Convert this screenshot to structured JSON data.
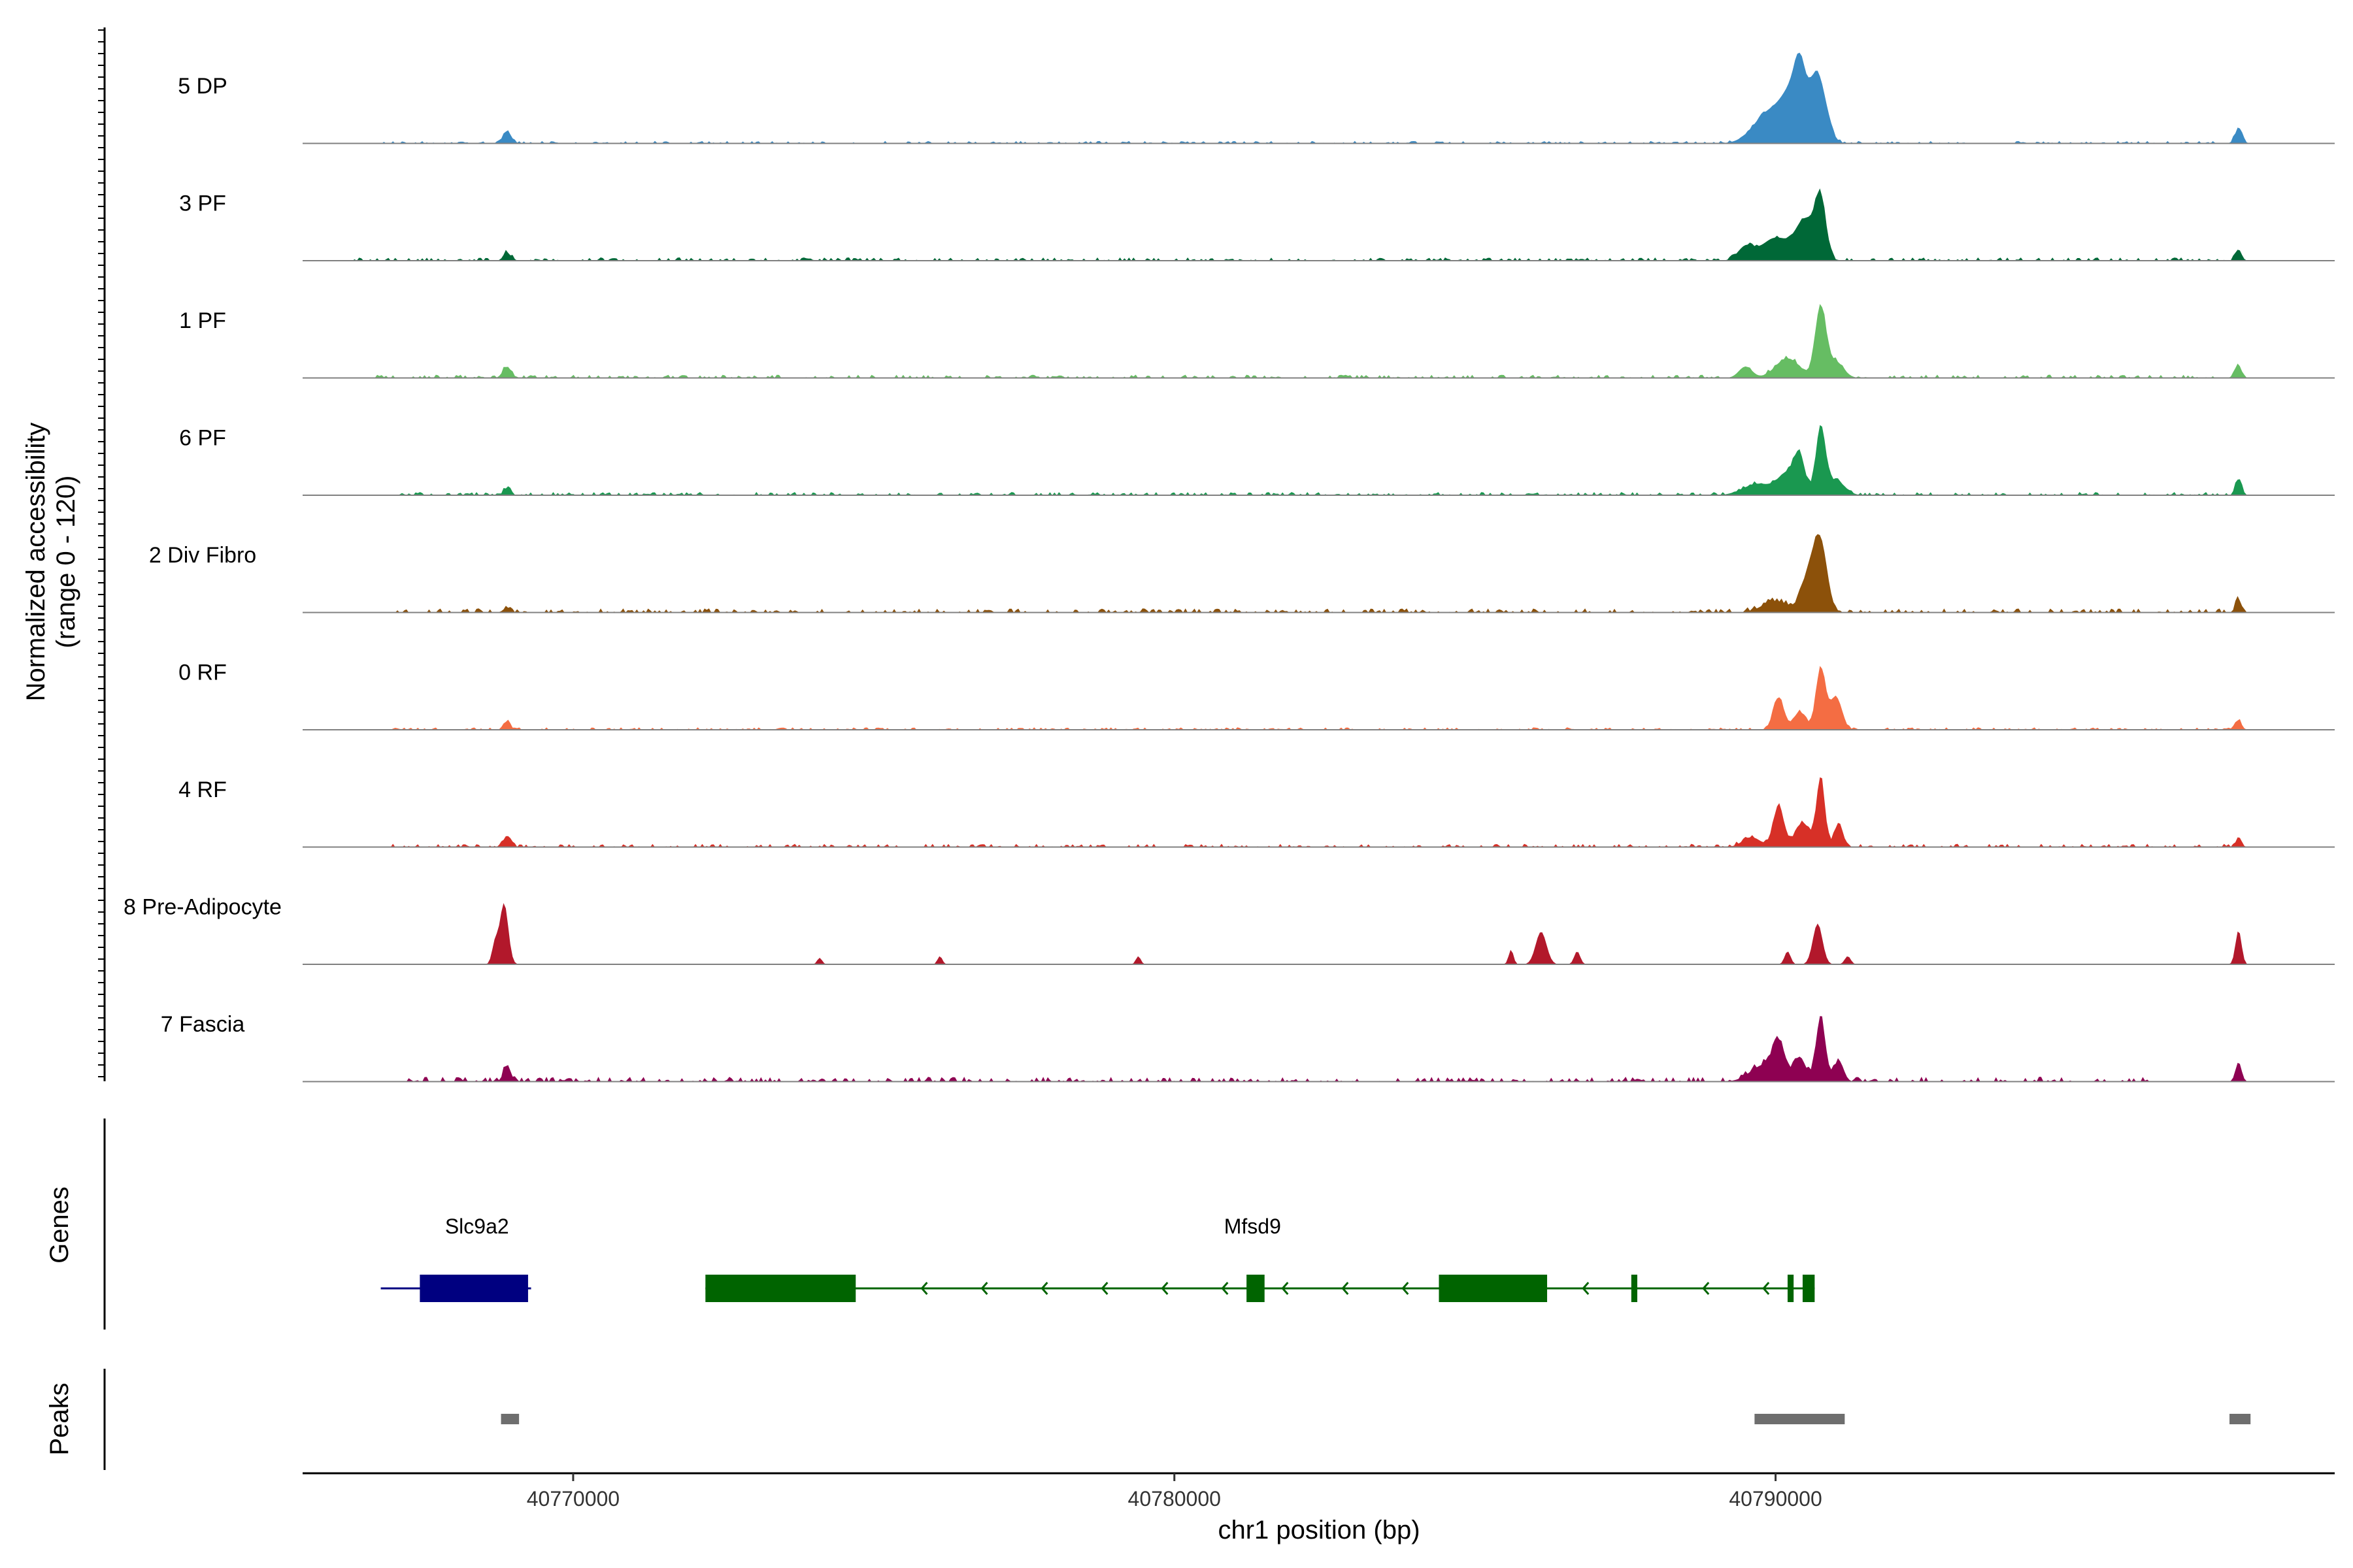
{
  "chart_data": {
    "type": "area",
    "title": "",
    "ylabel_line1": "Normalized accessibility",
    "ylabel_line2": "(range 0 - 120)",
    "xlabel": "chr1 position (bp)",
    "ylim": [
      0,
      120
    ],
    "xlim": [
      40765500,
      40799300
    ],
    "x_ticks": [
      {
        "value": 40770000,
        "label": "40770000"
      },
      {
        "value": 40780000,
        "label": "40780000"
      },
      {
        "value": 40790000,
        "label": "40790000"
      }
    ],
    "series": [
      {
        "name": "5 DP",
        "color": "#3A8AC4",
        "peaks": [
          [
            40768900,
            15,
            70
          ],
          [
            40789900,
            38,
            260
          ],
          [
            40790300,
            55,
            180
          ],
          [
            40790700,
            82,
            140
          ],
          [
            40790400,
            48,
            90
          ],
          [
            40797700,
            18,
            60
          ]
        ],
        "noise": 3,
        "noise_from": 40766800,
        "noise_to": 40797800
      },
      {
        "name": "3 PF",
        "color": "#006837",
        "peaks": [
          [
            40768900,
            10,
            60
          ],
          [
            40789500,
            16,
            130
          ],
          [
            40790000,
            28,
            240
          ],
          [
            40790500,
            48,
            160
          ],
          [
            40790750,
            70,
            90
          ],
          [
            40797700,
            14,
            50
          ]
        ],
        "noise": 4,
        "noise_from": 40766300,
        "noise_to": 40797800
      },
      {
        "name": "1 PF",
        "color": "#66BD63",
        "peaks": [
          [
            40768900,
            14,
            70
          ],
          [
            40789500,
            14,
            110
          ],
          [
            40790200,
            24,
            200
          ],
          [
            40790750,
            85,
            90
          ],
          [
            40791000,
            20,
            130
          ],
          [
            40797700,
            16,
            50
          ]
        ],
        "noise": 4,
        "noise_from": 40766600,
        "noise_to": 40797800
      },
      {
        "name": "6 PF",
        "color": "#1A9850",
        "peaks": [
          [
            40768900,
            8,
            60
          ],
          [
            40789700,
            14,
            240
          ],
          [
            40790200,
            26,
            160
          ],
          [
            40790400,
            42,
            90
          ],
          [
            40790750,
            82,
            80
          ],
          [
            40791000,
            18,
            150
          ],
          [
            40797700,
            20,
            50
          ]
        ],
        "noise": 4,
        "noise_from": 40766600,
        "noise_to": 40797800
      },
      {
        "name": "2 Div Fibro",
        "color": "#8C510A",
        "peaks": [
          [
            40768900,
            6,
            60
          ],
          [
            40790000,
            14,
            220
          ],
          [
            40790550,
            45,
            120
          ],
          [
            40790750,
            82,
            110
          ],
          [
            40797700,
            16,
            50
          ]
        ],
        "noise": 5,
        "noise_from": 40767000,
        "noise_to": 40797800
      },
      {
        "name": "0 RF",
        "color": "#F46D43",
        "peaks": [
          [
            40768900,
            10,
            50
          ],
          [
            40790050,
            40,
            90
          ],
          [
            40790400,
            22,
            100
          ],
          [
            40790750,
            75,
            80
          ],
          [
            40791000,
            40,
            100
          ],
          [
            40797700,
            12,
            50
          ]
        ],
        "noise": 3,
        "noise_from": 40767000,
        "noise_to": 40797800
      },
      {
        "name": "4 RF",
        "color": "#D73027",
        "peaks": [
          [
            40768900,
            14,
            60
          ],
          [
            40789600,
            12,
            150
          ],
          [
            40790050,
            50,
            90
          ],
          [
            40790450,
            30,
            120
          ],
          [
            40790750,
            85,
            70
          ],
          [
            40791050,
            30,
            70
          ],
          [
            40797700,
            10,
            50
          ]
        ],
        "noise": 4,
        "noise_from": 40767000,
        "noise_to": 40797800
      },
      {
        "name": "8 Pre-Adipocyte",
        "color": "#B2182B",
        "peaks": [
          [
            40768850,
            75,
            70
          ],
          [
            40768700,
            25,
            50
          ],
          [
            40774100,
            8,
            40
          ],
          [
            40776100,
            10,
            40
          ],
          [
            40779400,
            10,
            40
          ],
          [
            40785600,
            18,
            40
          ],
          [
            40786100,
            40,
            90
          ],
          [
            40786700,
            16,
            50
          ],
          [
            40790200,
            16,
            50
          ],
          [
            40790700,
            50,
            80
          ],
          [
            40791200,
            10,
            50
          ],
          [
            40797700,
            42,
            50
          ]
        ],
        "noise": 0,
        "noise_from": 40767000,
        "noise_to": 40797800
      },
      {
        "name": "7 Fascia",
        "color": "#8E0152",
        "peaks": [
          [
            40768900,
            20,
            60
          ],
          [
            40789800,
            20,
            220
          ],
          [
            40790050,
            42,
            100
          ],
          [
            40790400,
            30,
            100
          ],
          [
            40790750,
            78,
            80
          ],
          [
            40791050,
            26,
            80
          ],
          [
            40797700,
            24,
            50
          ]
        ],
        "noise": 6,
        "noise_from": 40767000,
        "noise_to": 40796200
      }
    ],
    "tracks_axis_label": "Genes",
    "genes": [
      {
        "name": "Slc9a2",
        "color": "#000080",
        "strand": "+",
        "start": 40766800,
        "end": 40769300,
        "label_pos": 40768400,
        "exons": [
          [
            40767450,
            40769250
          ]
        ]
      },
      {
        "name": "Mfsd9",
        "color": "#006400",
        "strand": "-",
        "start": 40772200,
        "end": 40790650,
        "label_pos": 40781300,
        "exons": [
          [
            40772200,
            40774700
          ],
          [
            40781200,
            40781500
          ],
          [
            40784400,
            40786200
          ],
          [
            40787600,
            40787700
          ],
          [
            40790200,
            40790300
          ],
          [
            40790450,
            40790650
          ]
        ]
      }
    ],
    "peaks_axis_label": "Peaks",
    "peaks": [
      {
        "start": 40768800,
        "end": 40769100,
        "color": "#6E6E6E"
      },
      {
        "start": 40789650,
        "end": 40791150,
        "color": "#6E6E6E"
      },
      {
        "start": 40797550,
        "end": 40797900,
        "color": "#6E6E6E"
      }
    ],
    "baseline_color": "#808080",
    "grid": false
  }
}
